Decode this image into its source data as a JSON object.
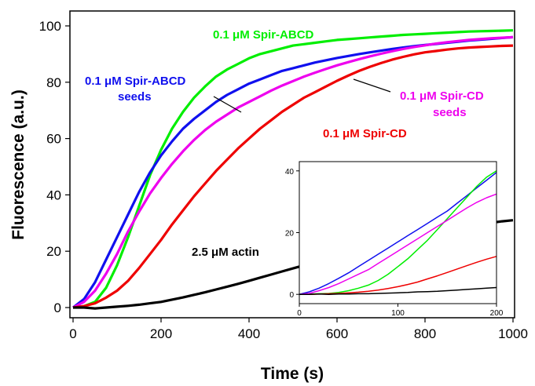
{
  "chart_data": {
    "type": "line",
    "xlabel": "Time (s)",
    "ylabel": "Fluorescence (a.u.)",
    "xlim": [
      0,
      1000
    ],
    "ylim": [
      -5,
      105
    ],
    "xticks": [
      0,
      200,
      400,
      600,
      800,
      1000
    ],
    "yticks": [
      0,
      20,
      40,
      60,
      80,
      100
    ],
    "x": [
      0,
      25,
      50,
      75,
      100,
      125,
      150,
      175,
      200,
      225,
      250,
      275,
      300,
      325,
      350,
      375,
      400,
      425,
      450,
      475,
      500,
      525,
      550,
      575,
      600,
      625,
      650,
      675,
      700,
      725,
      750,
      775,
      800,
      825,
      850,
      875,
      900,
      925,
      950,
      975,
      1000
    ],
    "series": [
      {
        "color": "#00ee00",
        "values": [
          0,
          0.5,
          2,
          7,
          15,
          25,
          36,
          47,
          56,
          63.5,
          69.5,
          74.5,
          78.5,
          82,
          84.5,
          86.5,
          88.5,
          90,
          91,
          92,
          93,
          93.5,
          94,
          94.5,
          95,
          95.3,
          95.6,
          95.9,
          96.2,
          96.5,
          96.8,
          97,
          97.2,
          97.4,
          97.6,
          97.8,
          98,
          98.1,
          98.2,
          98.3,
          98.4
        ]
      },
      {
        "color": "#1010ee",
        "values": [
          0,
          3,
          9,
          17,
          25,
          33,
          41,
          48,
          54,
          59,
          63.5,
          67,
          70,
          73,
          75.5,
          77.5,
          79.5,
          81,
          82.5,
          84,
          85,
          86,
          87,
          87.8,
          88.6,
          89.3,
          90,
          90.6,
          91.2,
          91.8,
          92.3,
          92.8,
          93.2,
          93.6,
          94,
          94.4,
          94.8,
          95.1,
          95.4,
          95.7,
          96
        ]
      },
      {
        "color": "#ee00ee",
        "values": [
          0,
          2,
          6,
          12,
          19,
          27,
          34,
          40.5,
          46,
          51,
          55.5,
          59.5,
          63,
          66,
          68.5,
          71,
          73,
          75,
          77,
          78.8,
          80.4,
          82,
          83.4,
          84.7,
          86,
          87.1,
          88.2,
          89.2,
          90.1,
          91,
          91.8,
          92.5,
          93.1,
          93.7,
          94.2,
          94.6,
          95,
          95.3,
          95.6,
          95.8,
          96
        ]
      },
      {
        "color": "#ee0000",
        "values": [
          0,
          0.5,
          1.5,
          3.5,
          6,
          9.5,
          14,
          19,
          24,
          29.5,
          34.5,
          39.5,
          44,
          48.5,
          52.5,
          56.5,
          60,
          63.5,
          66.5,
          69.5,
          72,
          74.5,
          76.5,
          78.5,
          80.5,
          82.3,
          84,
          85.5,
          86.8,
          88,
          89,
          89.9,
          90.6,
          91.1,
          91.6,
          92,
          92.3,
          92.5,
          92.7,
          92.9,
          93
        ]
      },
      {
        "color": "#000000",
        "values": [
          0,
          0,
          -0.3,
          0,
          0.3,
          0.6,
          1,
          1.5,
          2,
          2.8,
          3.6,
          4.5,
          5.4,
          6.4,
          7.4,
          8.4,
          9.5,
          10.6,
          11.7,
          12.8,
          13.9,
          15,
          16,
          17.1,
          18.2,
          19.3,
          20.4,
          21.4,
          22.4,
          23.4,
          24.4,
          25.3,
          26.2,
          27,
          27.8,
          28.4,
          29,
          29.6,
          30.1,
          30.6,
          31
        ]
      }
    ],
    "annotations": [
      {
        "text": "0.1 μM Spir-ABCD",
        "color": "#00ee00"
      },
      {
        "text": "0.1 μM Spir-ABCD",
        "color": "#1010ee"
      },
      {
        "text": "seeds",
        "color": "#1010ee"
      },
      {
        "text": "0.1 μM Spir-CD",
        "color": "#ee00ee"
      },
      {
        "text": "seeds",
        "color": "#ee00ee"
      },
      {
        "text": "0.1 μM Spir-CD",
        "color": "#ee0000"
      },
      {
        "text": "2.5 μM actin",
        "color": "#000000"
      }
    ],
    "inset": {
      "xlim": [
        0,
        200
      ],
      "ylim": [
        -3,
        43
      ],
      "xticks": [
        0,
        100,
        200
      ],
      "yticks": [
        0,
        20,
        40
      ],
      "x": [
        0,
        10,
        20,
        30,
        40,
        50,
        60,
        70,
        80,
        90,
        100,
        110,
        120,
        130,
        140,
        150,
        160,
        170,
        180,
        190,
        200
      ],
      "series": [
        {
          "color": "#1010ee",
          "values": [
            0,
            0.8,
            2,
            3.5,
            5.2,
            7,
            9,
            11,
            13,
            15,
            17,
            19,
            21,
            23,
            25,
            27,
            29.5,
            32,
            34.5,
            37,
            39.5
          ]
        },
        {
          "color": "#00ee00",
          "values": [
            0,
            0.1,
            0.2,
            0.3,
            0.6,
            1.2,
            2,
            3,
            4.5,
            6.5,
            9,
            11.5,
            14.5,
            17.5,
            21,
            24.5,
            28,
            31.5,
            35,
            38,
            40
          ]
        },
        {
          "color": "#ee00ee",
          "values": [
            0,
            0.3,
            1.2,
            2.2,
            3.5,
            5,
            6.5,
            8,
            10,
            12,
            14,
            16,
            18,
            20,
            22,
            24,
            26,
            28,
            29.8,
            31.3,
            32.5
          ]
        },
        {
          "color": "#ee0000",
          "values": [
            0,
            0,
            0.1,
            0.2,
            0.3,
            0.5,
            0.7,
            1,
            1.4,
            1.9,
            2.5,
            3.2,
            4,
            5,
            6,
            7.1,
            8.2,
            9.3,
            10.4,
            11.4,
            12.3
          ]
        },
        {
          "color": "#000000",
          "values": [
            0,
            0,
            0.1,
            0,
            0.1,
            0.1,
            0.2,
            0.2,
            0.3,
            0.4,
            0.5,
            0.6,
            0.8,
            0.9,
            1,
            1.2,
            1.4,
            1.6,
            1.8,
            2,
            2.2
          ]
        }
      ]
    }
  }
}
